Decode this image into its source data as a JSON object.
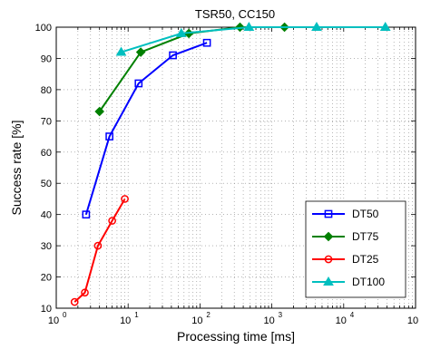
{
  "chart_data": {
    "type": "line",
    "title": "TSR50, CC150",
    "xlabel": "Processing time [ms]",
    "ylabel": "Success rate [%]",
    "xscale": "log",
    "xlim": [
      1,
      100000
    ],
    "ylim": [
      10,
      100
    ],
    "xticks": [
      {
        "value": 1,
        "base": "10",
        "exp": "0"
      },
      {
        "value": 10,
        "base": "10",
        "exp": "1"
      },
      {
        "value": 100,
        "base": "10",
        "exp": "2"
      },
      {
        "value": 1000,
        "base": "10",
        "exp": "3"
      },
      {
        "value": 10000,
        "base": "10",
        "exp": "4"
      },
      {
        "value": 100000,
        "base": "10",
        "exp": "5"
      }
    ],
    "yticks": [
      10,
      20,
      30,
      40,
      50,
      60,
      70,
      80,
      90,
      100
    ],
    "grid": true,
    "legend_position": "lower-right",
    "series": [
      {
        "name": "DT50",
        "color": "#0000ff",
        "marker": "square",
        "x": [
          2.6,
          5.5,
          14,
          42,
          125
        ],
        "y": [
          40,
          65,
          82,
          91,
          95
        ]
      },
      {
        "name": "DT75",
        "color": "#008000",
        "marker": "diamond",
        "x": [
          4,
          15,
          70,
          360,
          1500
        ],
        "y": [
          73,
          92,
          98,
          100,
          100
        ]
      },
      {
        "name": "DT25",
        "color": "#ff0000",
        "marker": "circle",
        "x": [
          1.8,
          2.5,
          3.8,
          6,
          9
        ],
        "y": [
          12,
          15,
          30,
          38,
          45
        ]
      },
      {
        "name": "DT100",
        "color": "#00bfbf",
        "marker": "triangle",
        "x": [
          8,
          55,
          480,
          4200,
          38000
        ],
        "y": [
          92,
          98,
          100,
          100,
          100
        ]
      }
    ]
  }
}
